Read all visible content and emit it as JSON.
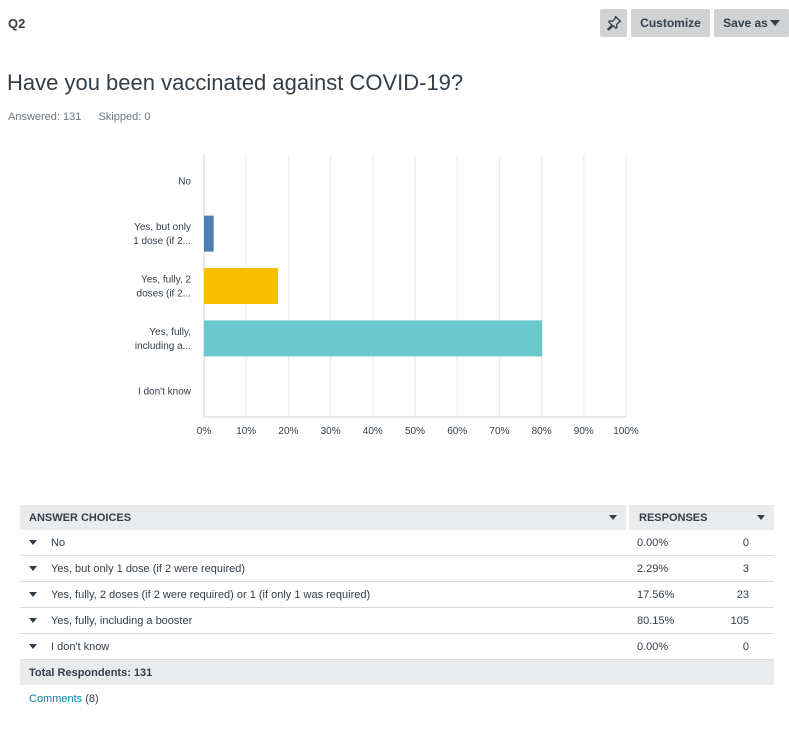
{
  "question_number": "Q2",
  "toolbar": {
    "pin_icon": "pin-icon",
    "customize_label": "Customize",
    "save_label": "Save as"
  },
  "question_title": "Have you been vaccinated against COVID-19?",
  "stats": {
    "answered": "Answered: 131",
    "skipped": "Skipped: 0"
  },
  "colors": {
    "bar1": "#507cb6",
    "bar2": "#f9be00",
    "bar3": "#6bc8cd",
    "grid": "#ebebeb",
    "axis": "#d0d2d3"
  },
  "chart_data": {
    "type": "bar",
    "orientation": "horizontal",
    "categories": [
      [
        "No"
      ],
      [
        "Yes, but only",
        "1 dose (if 2..."
      ],
      [
        "Yes, fully, 2",
        "doses (if 2..."
      ],
      [
        "Yes, fully,",
        "including a..."
      ],
      [
        "I don't know"
      ]
    ],
    "values": [
      0.0,
      2.29,
      17.56,
      80.15,
      0.0
    ],
    "xlim": [
      0,
      100
    ],
    "xticks": [
      "0%",
      "10%",
      "20%",
      "30%",
      "40%",
      "50%",
      "60%",
      "70%",
      "80%",
      "90%",
      "100%"
    ],
    "grid": true
  },
  "table": {
    "header_choices": "ANSWER CHOICES",
    "header_responses": "RESPONSES",
    "rows": [
      {
        "choice": "No",
        "pct": "0.00%",
        "count": "0"
      },
      {
        "choice": "Yes, but only 1 dose (if 2 were required)",
        "pct": "2.29%",
        "count": "3"
      },
      {
        "choice": "Yes, fully, 2 doses (if 2 were required) or 1 (if only 1 was required)",
        "pct": "17.56%",
        "count": "23"
      },
      {
        "choice": "Yes, fully, including a booster",
        "pct": "80.15%",
        "count": "105"
      },
      {
        "choice": "I don't know",
        "pct": "0.00%",
        "count": "0"
      }
    ],
    "total": "Total Respondents: 131"
  },
  "comments": {
    "link": "Comments",
    "count": "(8)"
  }
}
